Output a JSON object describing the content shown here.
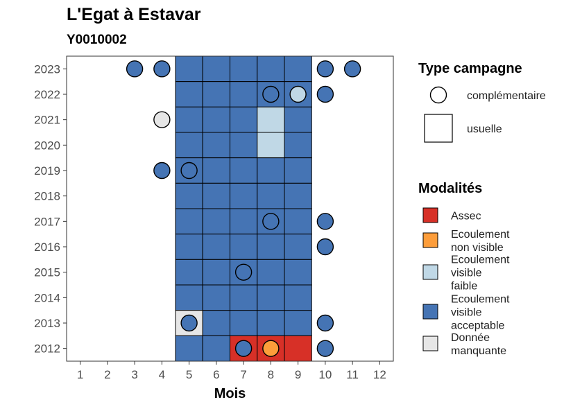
{
  "chart_data": {
    "type": "heatmap",
    "title": "L'Egat à Estavar",
    "subtitle": "Y0010002",
    "xlabel": "Mois",
    "ylabel": "",
    "x_ticks": [
      1,
      2,
      3,
      4,
      5,
      6,
      7,
      8,
      9,
      10,
      11,
      12
    ],
    "y_ticks": [
      2012,
      2013,
      2014,
      2015,
      2016,
      2017,
      2018,
      2019,
      2020,
      2021,
      2022,
      2023
    ],
    "xlim": [
      0.5,
      12.5
    ],
    "ylim": [
      2011.5,
      2023.5
    ],
    "grid": false,
    "legend_placement": "right",
    "colors": {
      "Assec": "#d73027",
      "Ecoulement non visible": "#fd9d3a",
      "Ecoulement visible faible": "#c0d8e6",
      "Ecoulement visible acceptable": "#4574b4",
      "Donnée manquante": "#e6e6e6"
    },
    "usual_campaigns": [
      {
        "year": 2023,
        "month": 5,
        "modalite": "Ecoulement visible acceptable"
      },
      {
        "year": 2023,
        "month": 6,
        "modalite": "Ecoulement visible acceptable"
      },
      {
        "year": 2023,
        "month": 7,
        "modalite": "Ecoulement visible acceptable"
      },
      {
        "year": 2023,
        "month": 8,
        "modalite": "Ecoulement visible acceptable"
      },
      {
        "year": 2023,
        "month": 9,
        "modalite": "Ecoulement visible acceptable"
      },
      {
        "year": 2022,
        "month": 5,
        "modalite": "Ecoulement visible acceptable"
      },
      {
        "year": 2022,
        "month": 6,
        "modalite": "Ecoulement visible acceptable"
      },
      {
        "year": 2022,
        "month": 7,
        "modalite": "Ecoulement visible acceptable"
      },
      {
        "year": 2022,
        "month": 8,
        "modalite": "Ecoulement visible acceptable"
      },
      {
        "year": 2022,
        "month": 9,
        "modalite": "Ecoulement visible acceptable"
      },
      {
        "year": 2021,
        "month": 5,
        "modalite": "Ecoulement visible acceptable"
      },
      {
        "year": 2021,
        "month": 6,
        "modalite": "Ecoulement visible acceptable"
      },
      {
        "year": 2021,
        "month": 7,
        "modalite": "Ecoulement visible acceptable"
      },
      {
        "year": 2021,
        "month": 8,
        "modalite": "Ecoulement visible faible"
      },
      {
        "year": 2021,
        "month": 9,
        "modalite": "Ecoulement visible acceptable"
      },
      {
        "year": 2020,
        "month": 5,
        "modalite": "Ecoulement visible acceptable"
      },
      {
        "year": 2020,
        "month": 6,
        "modalite": "Ecoulement visible acceptable"
      },
      {
        "year": 2020,
        "month": 7,
        "modalite": "Ecoulement visible acceptable"
      },
      {
        "year": 2020,
        "month": 8,
        "modalite": "Ecoulement visible faible"
      },
      {
        "year": 2020,
        "month": 9,
        "modalite": "Ecoulement visible acceptable"
      },
      {
        "year": 2019,
        "month": 5,
        "modalite": "Ecoulement visible acceptable"
      },
      {
        "year": 2019,
        "month": 6,
        "modalite": "Ecoulement visible acceptable"
      },
      {
        "year": 2019,
        "month": 7,
        "modalite": "Ecoulement visible acceptable"
      },
      {
        "year": 2019,
        "month": 8,
        "modalite": "Ecoulement visible acceptable"
      },
      {
        "year": 2019,
        "month": 9,
        "modalite": "Ecoulement visible acceptable"
      },
      {
        "year": 2018,
        "month": 5,
        "modalite": "Ecoulement visible acceptable"
      },
      {
        "year": 2018,
        "month": 6,
        "modalite": "Ecoulement visible acceptable"
      },
      {
        "year": 2018,
        "month": 7,
        "modalite": "Ecoulement visible acceptable"
      },
      {
        "year": 2018,
        "month": 8,
        "modalite": "Ecoulement visible acceptable"
      },
      {
        "year": 2018,
        "month": 9,
        "modalite": "Ecoulement visible acceptable"
      },
      {
        "year": 2017,
        "month": 5,
        "modalite": "Ecoulement visible acceptable"
      },
      {
        "year": 2017,
        "month": 6,
        "modalite": "Ecoulement visible acceptable"
      },
      {
        "year": 2017,
        "month": 7,
        "modalite": "Ecoulement visible acceptable"
      },
      {
        "year": 2017,
        "month": 8,
        "modalite": "Ecoulement visible acceptable"
      },
      {
        "year": 2017,
        "month": 9,
        "modalite": "Ecoulement visible acceptable"
      },
      {
        "year": 2016,
        "month": 5,
        "modalite": "Ecoulement visible acceptable"
      },
      {
        "year": 2016,
        "month": 6,
        "modalite": "Ecoulement visible acceptable"
      },
      {
        "year": 2016,
        "month": 7,
        "modalite": "Ecoulement visible acceptable"
      },
      {
        "year": 2016,
        "month": 8,
        "modalite": "Ecoulement visible acceptable"
      },
      {
        "year": 2016,
        "month": 9,
        "modalite": "Ecoulement visible acceptable"
      },
      {
        "year": 2015,
        "month": 5,
        "modalite": "Ecoulement visible acceptable"
      },
      {
        "year": 2015,
        "month": 6,
        "modalite": "Ecoulement visible acceptable"
      },
      {
        "year": 2015,
        "month": 7,
        "modalite": "Ecoulement visible acceptable"
      },
      {
        "year": 2015,
        "month": 8,
        "modalite": "Ecoulement visible acceptable"
      },
      {
        "year": 2015,
        "month": 9,
        "modalite": "Ecoulement visible acceptable"
      },
      {
        "year": 2014,
        "month": 5,
        "modalite": "Ecoulement visible acceptable"
      },
      {
        "year": 2014,
        "month": 6,
        "modalite": "Ecoulement visible acceptable"
      },
      {
        "year": 2014,
        "month": 7,
        "modalite": "Ecoulement visible acceptable"
      },
      {
        "year": 2014,
        "month": 8,
        "modalite": "Ecoulement visible acceptable"
      },
      {
        "year": 2014,
        "month": 9,
        "modalite": "Ecoulement visible acceptable"
      },
      {
        "year": 2013,
        "month": 5,
        "modalite": "Donnée manquante"
      },
      {
        "year": 2013,
        "month": 6,
        "modalite": "Ecoulement visible acceptable"
      },
      {
        "year": 2013,
        "month": 7,
        "modalite": "Ecoulement visible acceptable"
      },
      {
        "year": 2013,
        "month": 8,
        "modalite": "Ecoulement visible acceptable"
      },
      {
        "year": 2013,
        "month": 9,
        "modalite": "Ecoulement visible acceptable"
      },
      {
        "year": 2012,
        "month": 5,
        "modalite": "Ecoulement visible acceptable"
      },
      {
        "year": 2012,
        "month": 6,
        "modalite": "Ecoulement visible acceptable"
      },
      {
        "year": 2012,
        "month": 7,
        "modalite": "Assec"
      },
      {
        "year": 2012,
        "month": 8,
        "modalite": "Assec"
      },
      {
        "year": 2012,
        "month": 9,
        "modalite": "Assec"
      }
    ],
    "complementary_campaigns": [
      {
        "year": 2023,
        "month": 3,
        "modalite": "Ecoulement visible acceptable"
      },
      {
        "year": 2023,
        "month": 4,
        "modalite": "Ecoulement visible acceptable"
      },
      {
        "year": 2023,
        "month": 10,
        "modalite": "Ecoulement visible acceptable"
      },
      {
        "year": 2023,
        "month": 11,
        "modalite": "Ecoulement visible acceptable"
      },
      {
        "year": 2022,
        "month": 8,
        "modalite": "Ecoulement visible acceptable"
      },
      {
        "year": 2022,
        "month": 9,
        "modalite": "Ecoulement visible faible"
      },
      {
        "year": 2022,
        "month": 10,
        "modalite": "Ecoulement visible acceptable"
      },
      {
        "year": 2021,
        "month": 4,
        "modalite": "Donnée manquante"
      },
      {
        "year": 2019,
        "month": 4,
        "modalite": "Ecoulement visible acceptable"
      },
      {
        "year": 2019,
        "month": 5,
        "modalite": "Ecoulement visible acceptable"
      },
      {
        "year": 2017,
        "month": 8,
        "modalite": "Ecoulement visible acceptable"
      },
      {
        "year": 2017,
        "month": 10,
        "modalite": "Ecoulement visible acceptable"
      },
      {
        "year": 2016,
        "month": 10,
        "modalite": "Ecoulement visible acceptable"
      },
      {
        "year": 2015,
        "month": 7,
        "modalite": "Ecoulement visible acceptable"
      },
      {
        "year": 2013,
        "month": 5,
        "modalite": "Ecoulement visible acceptable"
      },
      {
        "year": 2013,
        "month": 10,
        "modalite": "Ecoulement visible acceptable"
      },
      {
        "year": 2012,
        "month": 7,
        "modalite": "Ecoulement visible acceptable"
      },
      {
        "year": 2012,
        "month": 8,
        "modalite": "Ecoulement non visible"
      },
      {
        "year": 2012,
        "month": 10,
        "modalite": "Ecoulement visible acceptable"
      }
    ],
    "legend_type": {
      "title": "Type campagne",
      "entries": [
        "complémentaire",
        "usuelle"
      ]
    },
    "legend_modalites": {
      "title": "Modalités",
      "entries": [
        {
          "key": "Assec",
          "lines": [
            "Assec"
          ]
        },
        {
          "key": "Ecoulement non visible",
          "lines": [
            "Ecoulement",
            "non visible"
          ]
        },
        {
          "key": "Ecoulement visible faible",
          "lines": [
            "Ecoulement",
            "visible",
            "faible"
          ]
        },
        {
          "key": "Ecoulement visible acceptable",
          "lines": [
            "Ecoulement",
            "visible",
            "acceptable"
          ]
        },
        {
          "key": "Donnée manquante",
          "lines": [
            "Donnée",
            "manquante"
          ]
        }
      ]
    }
  }
}
